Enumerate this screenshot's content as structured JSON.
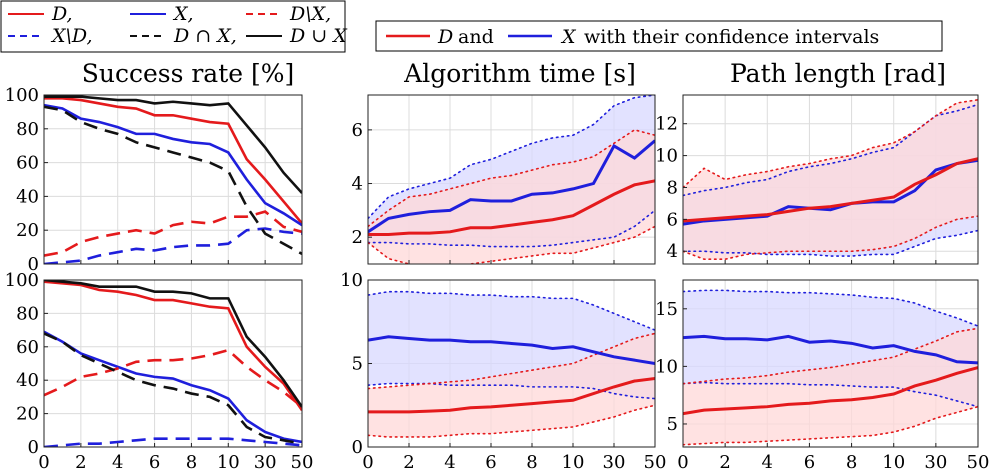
{
  "legend_left": {
    "entries": [
      {
        "label": "D,",
        "color": "#e41a1c",
        "dash": "solid"
      },
      {
        "label": "X,",
        "color": "#1f1fdc",
        "dash": "solid"
      },
      {
        "label": "D\\X,",
        "color": "#e41a1c",
        "dash": "dashed"
      },
      {
        "label": "X\\D,",
        "color": "#1f1fdc",
        "dash": "dashed"
      },
      {
        "label": "D ∩ X,",
        "color": "#111111",
        "dash": "dashed"
      },
      {
        "label": "D ∪ X",
        "color": "#111111",
        "dash": "solid"
      }
    ]
  },
  "legend_right": {
    "d_label": "D",
    "and_text": "and",
    "x_label": "X",
    "suffix": "with their confidence intervals"
  },
  "titles": {
    "success": "Success rate [%]",
    "time": "Algorithm time [s]",
    "path": "Path length [rad]"
  },
  "x_ticks": [
    "0",
    "2",
    "4",
    "6",
    "8",
    "10",
    "30",
    "50"
  ],
  "colors": {
    "red": "#e41a1c",
    "blue": "#1f1fdc",
    "black": "#111111",
    "fill_red": "#ffd8d8",
    "fill_blue": "#d8d8ff"
  },
  "chart_data": [
    {
      "type": "line",
      "panel": "success-top",
      "title": "Success rate [%]",
      "ylim": [
        0,
        100
      ],
      "yticks": [
        0,
        20,
        40,
        60,
        80,
        100
      ],
      "x": [
        0,
        1,
        2,
        3,
        4,
        5,
        6,
        7,
        8,
        9,
        10,
        11,
        12,
        13,
        14
      ],
      "series": [
        {
          "name": "D",
          "color": "#e41a1c",
          "dash": "solid",
          "values": [
            98,
            98,
            97,
            95,
            93,
            92,
            88,
            88,
            86,
            84,
            83,
            62,
            50,
            37,
            24
          ]
        },
        {
          "name": "X",
          "color": "#1f1fdc",
          "dash": "solid",
          "values": [
            94,
            92,
            86,
            84,
            81,
            77,
            77,
            74,
            72,
            71,
            66,
            50,
            36,
            30,
            23
          ]
        },
        {
          "name": "D\\X",
          "color": "#e41a1c",
          "dash": "dashed",
          "values": [
            5,
            7,
            13,
            16,
            18,
            20,
            18,
            23,
            25,
            24,
            28,
            28,
            31,
            22,
            19
          ]
        },
        {
          "name": "X\\D",
          "color": "#1f1fdc",
          "dash": "dashed",
          "values": [
            0,
            1,
            2,
            5,
            7,
            9,
            8,
            10,
            11,
            11,
            12,
            20,
            21,
            19,
            18
          ]
        },
        {
          "name": "D∩X",
          "color": "#111111",
          "dash": "dashed",
          "values": [
            93,
            91,
            84,
            80,
            77,
            72,
            69,
            66,
            63,
            60,
            55,
            34,
            18,
            12,
            6
          ]
        },
        {
          "name": "D∪X",
          "color": "#111111",
          "dash": "solid",
          "values": [
            99,
            99,
            99,
            98,
            97,
            97,
            95,
            96,
            95,
            94,
            95,
            82,
            69,
            54,
            42
          ]
        }
      ]
    },
    {
      "type": "line",
      "panel": "time-top",
      "title": "Algorithm time [s]",
      "ylim": [
        1.0,
        7.3
      ],
      "yticks": [
        2,
        4,
        6
      ],
      "x": [
        0,
        1,
        2,
        3,
        4,
        5,
        6,
        7,
        8,
        9,
        10,
        11,
        12,
        13,
        14
      ],
      "series": [
        {
          "name": "D",
          "color": "#e41a1c",
          "values": [
            2.1,
            2.1,
            2.15,
            2.15,
            2.2,
            2.35,
            2.35,
            2.45,
            2.55,
            2.65,
            2.8,
            3.2,
            3.6,
            3.95,
            4.1
          ],
          "ci_low": [
            1.8,
            1.2,
            1.0,
            0.9,
            0.9,
            1.0,
            1.1,
            1.2,
            1.3,
            1.4,
            1.4,
            1.6,
            1.8,
            2.0,
            2.4
          ],
          "ci_high": [
            2.4,
            3.0,
            3.5,
            3.6,
            3.8,
            4.0,
            4.2,
            4.3,
            4.5,
            4.7,
            4.8,
            5.0,
            5.5,
            6.0,
            5.8
          ]
        },
        {
          "name": "X",
          "color": "#1f1fdc",
          "values": [
            2.2,
            2.7,
            2.85,
            2.95,
            3.0,
            3.4,
            3.35,
            3.35,
            3.6,
            3.65,
            3.8,
            4.0,
            5.4,
            4.95,
            5.6
          ],
          "ci_low": [
            1.8,
            1.8,
            1.75,
            1.75,
            1.7,
            1.7,
            1.65,
            1.65,
            1.65,
            1.7,
            1.8,
            1.9,
            2.0,
            2.4,
            3.0
          ],
          "ci_high": [
            2.7,
            3.5,
            3.8,
            4.0,
            4.2,
            4.7,
            4.9,
            5.2,
            5.5,
            5.7,
            5.8,
            6.2,
            6.9,
            7.2,
            7.3
          ]
        }
      ]
    },
    {
      "type": "line",
      "panel": "path-top",
      "title": "Path length [rad]",
      "ylim": [
        3.2,
        13.8
      ],
      "yticks": [
        4,
        6,
        8,
        10,
        12
      ],
      "x": [
        0,
        1,
        2,
        3,
        4,
        5,
        6,
        7,
        8,
        9,
        10,
        11,
        12,
        13,
        14
      ],
      "series": [
        {
          "name": "D",
          "color": "#e41a1c",
          "values": [
            5.9,
            6.0,
            6.1,
            6.2,
            6.3,
            6.5,
            6.7,
            6.8,
            7.0,
            7.2,
            7.4,
            8.2,
            8.8,
            9.5,
            9.8
          ],
          "ci_low": [
            4.0,
            3.5,
            3.5,
            3.8,
            3.9,
            4.0,
            4.0,
            4.0,
            4.0,
            4.1,
            4.3,
            4.8,
            5.5,
            6.0,
            6.2
          ],
          "ci_high": [
            8.0,
            9.2,
            8.5,
            8.8,
            9.0,
            9.3,
            9.5,
            9.8,
            10.0,
            10.5,
            10.8,
            11.5,
            12.5,
            13.3,
            13.5
          ]
        },
        {
          "name": "X",
          "color": "#1f1fdc",
          "values": [
            5.7,
            5.9,
            6.0,
            6.1,
            6.2,
            6.8,
            6.7,
            6.6,
            7.0,
            7.1,
            7.1,
            7.8,
            9.1,
            9.5,
            9.7
          ],
          "ci_low": [
            4.0,
            4.0,
            3.9,
            3.9,
            3.8,
            3.8,
            3.8,
            3.7,
            3.7,
            3.8,
            3.8,
            4.3,
            4.8,
            5.0,
            5.3
          ],
          "ci_high": [
            7.5,
            7.8,
            8.0,
            8.3,
            8.5,
            9.0,
            9.3,
            9.5,
            9.8,
            10.2,
            10.5,
            11.5,
            12.5,
            12.8,
            13.2
          ]
        }
      ]
    },
    {
      "type": "line",
      "panel": "success-bottom",
      "title": "Success rate [%]",
      "ylim": [
        0,
        100
      ],
      "yticks": [
        0,
        20,
        40,
        60,
        80,
        100
      ],
      "x": [
        0,
        1,
        2,
        3,
        4,
        5,
        6,
        7,
        8,
        9,
        10,
        11,
        12,
        13,
        14
      ],
      "series": [
        {
          "name": "D",
          "color": "#e41a1c",
          "dash": "solid",
          "values": [
            99,
            98,
            97,
            94,
            93,
            91,
            88,
            88,
            86,
            84,
            83,
            60,
            48,
            38,
            22
          ]
        },
        {
          "name": "X",
          "color": "#1f1fdc",
          "dash": "solid",
          "values": [
            69,
            63,
            56,
            52,
            48,
            44,
            42,
            41,
            37,
            34,
            29,
            16,
            9,
            5,
            3
          ]
        },
        {
          "name": "D\\X",
          "color": "#e41a1c",
          "dash": "dashed",
          "values": [
            31,
            36,
            42,
            44,
            47,
            51,
            52,
            52,
            53,
            55,
            58,
            48,
            40,
            33,
            24
          ]
        },
        {
          "name": "X\\D",
          "color": "#1f1fdc",
          "dash": "dashed",
          "values": [
            0,
            1,
            2,
            2,
            3,
            4,
            5,
            5,
            5,
            5,
            5,
            4,
            3,
            2,
            1
          ]
        },
        {
          "name": "D∩X",
          "color": "#111111",
          "dash": "dashed",
          "values": [
            68,
            63,
            55,
            50,
            45,
            40,
            37,
            35,
            32,
            30,
            25,
            12,
            6,
            4,
            2
          ]
        },
        {
          "name": "D∪X",
          "color": "#111111",
          "dash": "solid",
          "values": [
            100,
            99,
            98,
            96,
            96,
            96,
            93,
            93,
            92,
            89,
            89,
            66,
            54,
            40,
            24
          ]
        }
      ]
    },
    {
      "type": "line",
      "panel": "time-bottom",
      "title": "Algorithm time [s]",
      "ylim": [
        0,
        10
      ],
      "yticks": [
        0,
        5,
        10
      ],
      "x": [
        0,
        1,
        2,
        3,
        4,
        5,
        6,
        7,
        8,
        9,
        10,
        11,
        12,
        13,
        14
      ],
      "series": [
        {
          "name": "D",
          "color": "#e41a1c",
          "values": [
            2.1,
            2.1,
            2.1,
            2.15,
            2.2,
            2.35,
            2.4,
            2.5,
            2.6,
            2.7,
            2.8,
            3.2,
            3.6,
            3.95,
            4.1
          ],
          "ci_low": [
            0.7,
            0.6,
            0.6,
            0.6,
            0.7,
            0.8,
            0.8,
            0.9,
            1.0,
            1.1,
            1.2,
            1.5,
            1.8,
            2.2,
            2.5
          ],
          "ci_high": [
            3.5,
            3.6,
            3.7,
            3.8,
            3.9,
            4.0,
            4.2,
            4.4,
            4.6,
            4.8,
            5.0,
            5.5,
            6.0,
            6.5,
            6.8
          ]
        },
        {
          "name": "X",
          "color": "#1f1fdc",
          "values": [
            6.4,
            6.6,
            6.5,
            6.4,
            6.4,
            6.3,
            6.3,
            6.2,
            6.1,
            5.9,
            6.0,
            5.7,
            5.4,
            5.2,
            5.0
          ],
          "ci_low": [
            3.7,
            3.8,
            3.8,
            3.8,
            3.7,
            3.7,
            3.7,
            3.7,
            3.6,
            3.6,
            3.6,
            3.5,
            3.2,
            3.0,
            2.9
          ],
          "ci_high": [
            9.1,
            9.3,
            9.3,
            9.2,
            9.2,
            9.1,
            9.1,
            9.0,
            9.0,
            8.9,
            8.9,
            8.5,
            8.0,
            7.5,
            7.0
          ]
        }
      ]
    },
    {
      "type": "line",
      "panel": "path-bottom",
      "title": "Path length [rad]",
      "ylim": [
        3,
        17.5
      ],
      "yticks": [
        5,
        10,
        15
      ],
      "x": [
        0,
        1,
        2,
        3,
        4,
        5,
        6,
        7,
        8,
        9,
        10,
        11,
        12,
        13,
        14
      ],
      "series": [
        {
          "name": "D",
          "color": "#e41a1c",
          "values": [
            5.9,
            6.2,
            6.3,
            6.4,
            6.5,
            6.7,
            6.8,
            7.0,
            7.1,
            7.3,
            7.6,
            8.3,
            8.8,
            9.4,
            9.9
          ],
          "ci_low": [
            3.2,
            3.3,
            3.4,
            3.4,
            3.5,
            3.6,
            3.7,
            3.8,
            3.9,
            4.0,
            4.3,
            4.8,
            5.5,
            6.0,
            6.5
          ],
          "ci_high": [
            8.5,
            8.7,
            8.9,
            9.0,
            9.2,
            9.5,
            9.7,
            9.9,
            10.2,
            10.5,
            10.8,
            11.5,
            12.2,
            13.0,
            13.3
          ]
        },
        {
          "name": "X",
          "color": "#1f1fdc",
          "values": [
            12.5,
            12.6,
            12.4,
            12.4,
            12.3,
            12.6,
            12.1,
            12.2,
            12.0,
            11.6,
            11.8,
            11.3,
            11.0,
            10.4,
            10.3
          ],
          "ci_low": [
            8.5,
            8.6,
            8.5,
            8.5,
            8.5,
            8.5,
            8.4,
            8.4,
            8.3,
            8.2,
            8.2,
            7.8,
            7.5,
            7.0,
            6.5
          ],
          "ci_high": [
            16.5,
            16.6,
            16.6,
            16.5,
            16.5,
            16.4,
            16.4,
            16.3,
            16.2,
            16.0,
            15.9,
            15.5,
            14.8,
            14.2,
            13.5
          ]
        }
      ]
    }
  ]
}
